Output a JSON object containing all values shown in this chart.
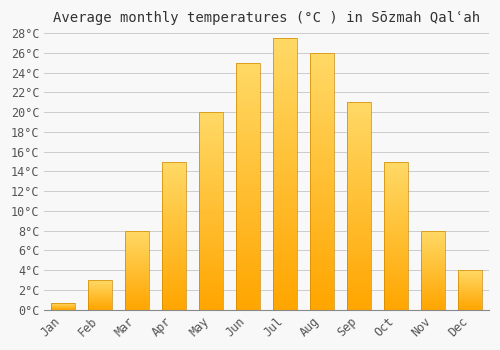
{
  "title": "Average monthly temperatures (°C ) in Sōzmah Qalʿah",
  "months": [
    "Jan",
    "Feb",
    "Mar",
    "Apr",
    "May",
    "Jun",
    "Jul",
    "Aug",
    "Sep",
    "Oct",
    "Nov",
    "Dec"
  ],
  "temperatures": [
    0.7,
    3.0,
    8.0,
    15.0,
    20.0,
    25.0,
    27.5,
    26.0,
    21.0,
    15.0,
    8.0,
    4.0
  ],
  "bar_color_bottom": "#FFA500",
  "bar_color_top": "#FFD966",
  "bar_edge_color": "#CC8800",
  "ylim": [
    0,
    28
  ],
  "ytick_step": 2,
  "background_color": "#f8f8f8",
  "plot_bg_color": "#f8f8f8",
  "grid_color": "#cccccc",
  "title_fontsize": 10,
  "tick_fontsize": 8.5,
  "figsize": [
    5.0,
    3.5
  ],
  "dpi": 100
}
